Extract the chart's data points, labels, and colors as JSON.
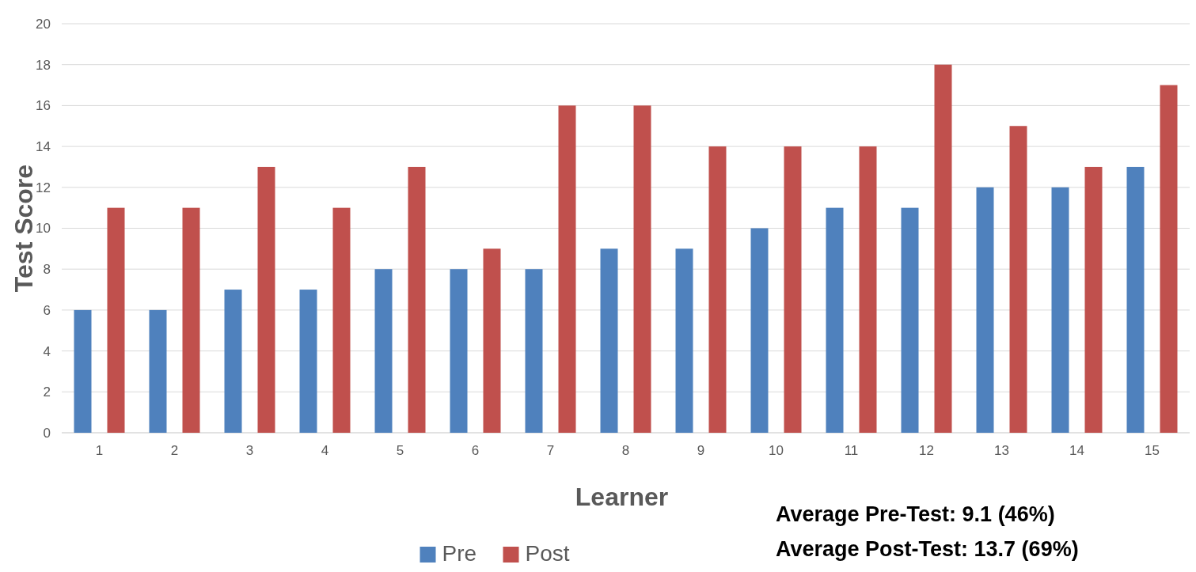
{
  "chart_data": {
    "type": "bar",
    "xlabel": "Learner",
    "ylabel": "Test Score",
    "categories": [
      "1",
      "2",
      "3",
      "4",
      "5",
      "6",
      "7",
      "8",
      "9",
      "10",
      "11",
      "12",
      "13",
      "14",
      "15"
    ],
    "series": [
      {
        "name": "Pre",
        "color": "#4f81bd",
        "values": [
          6,
          6,
          7,
          7,
          8,
          8,
          8,
          9,
          9,
          10,
          11,
          11,
          12,
          12,
          13
        ]
      },
      {
        "name": "Post",
        "color": "#c0504d",
        "values": [
          11,
          11,
          13,
          11,
          13,
          9,
          16,
          16,
          14,
          14,
          14,
          18,
          15,
          13,
          17
        ]
      }
    ],
    "ylim": [
      0,
      20
    ],
    "yticks": [
      0,
      2,
      4,
      6,
      8,
      10,
      12,
      14,
      16,
      18,
      20
    ],
    "grid": "y",
    "legend": "bottom",
    "annotations": [
      "Average Pre-Test: 9.1 (46%)",
      "Average Post-Test: 13.7 (69%)"
    ]
  }
}
